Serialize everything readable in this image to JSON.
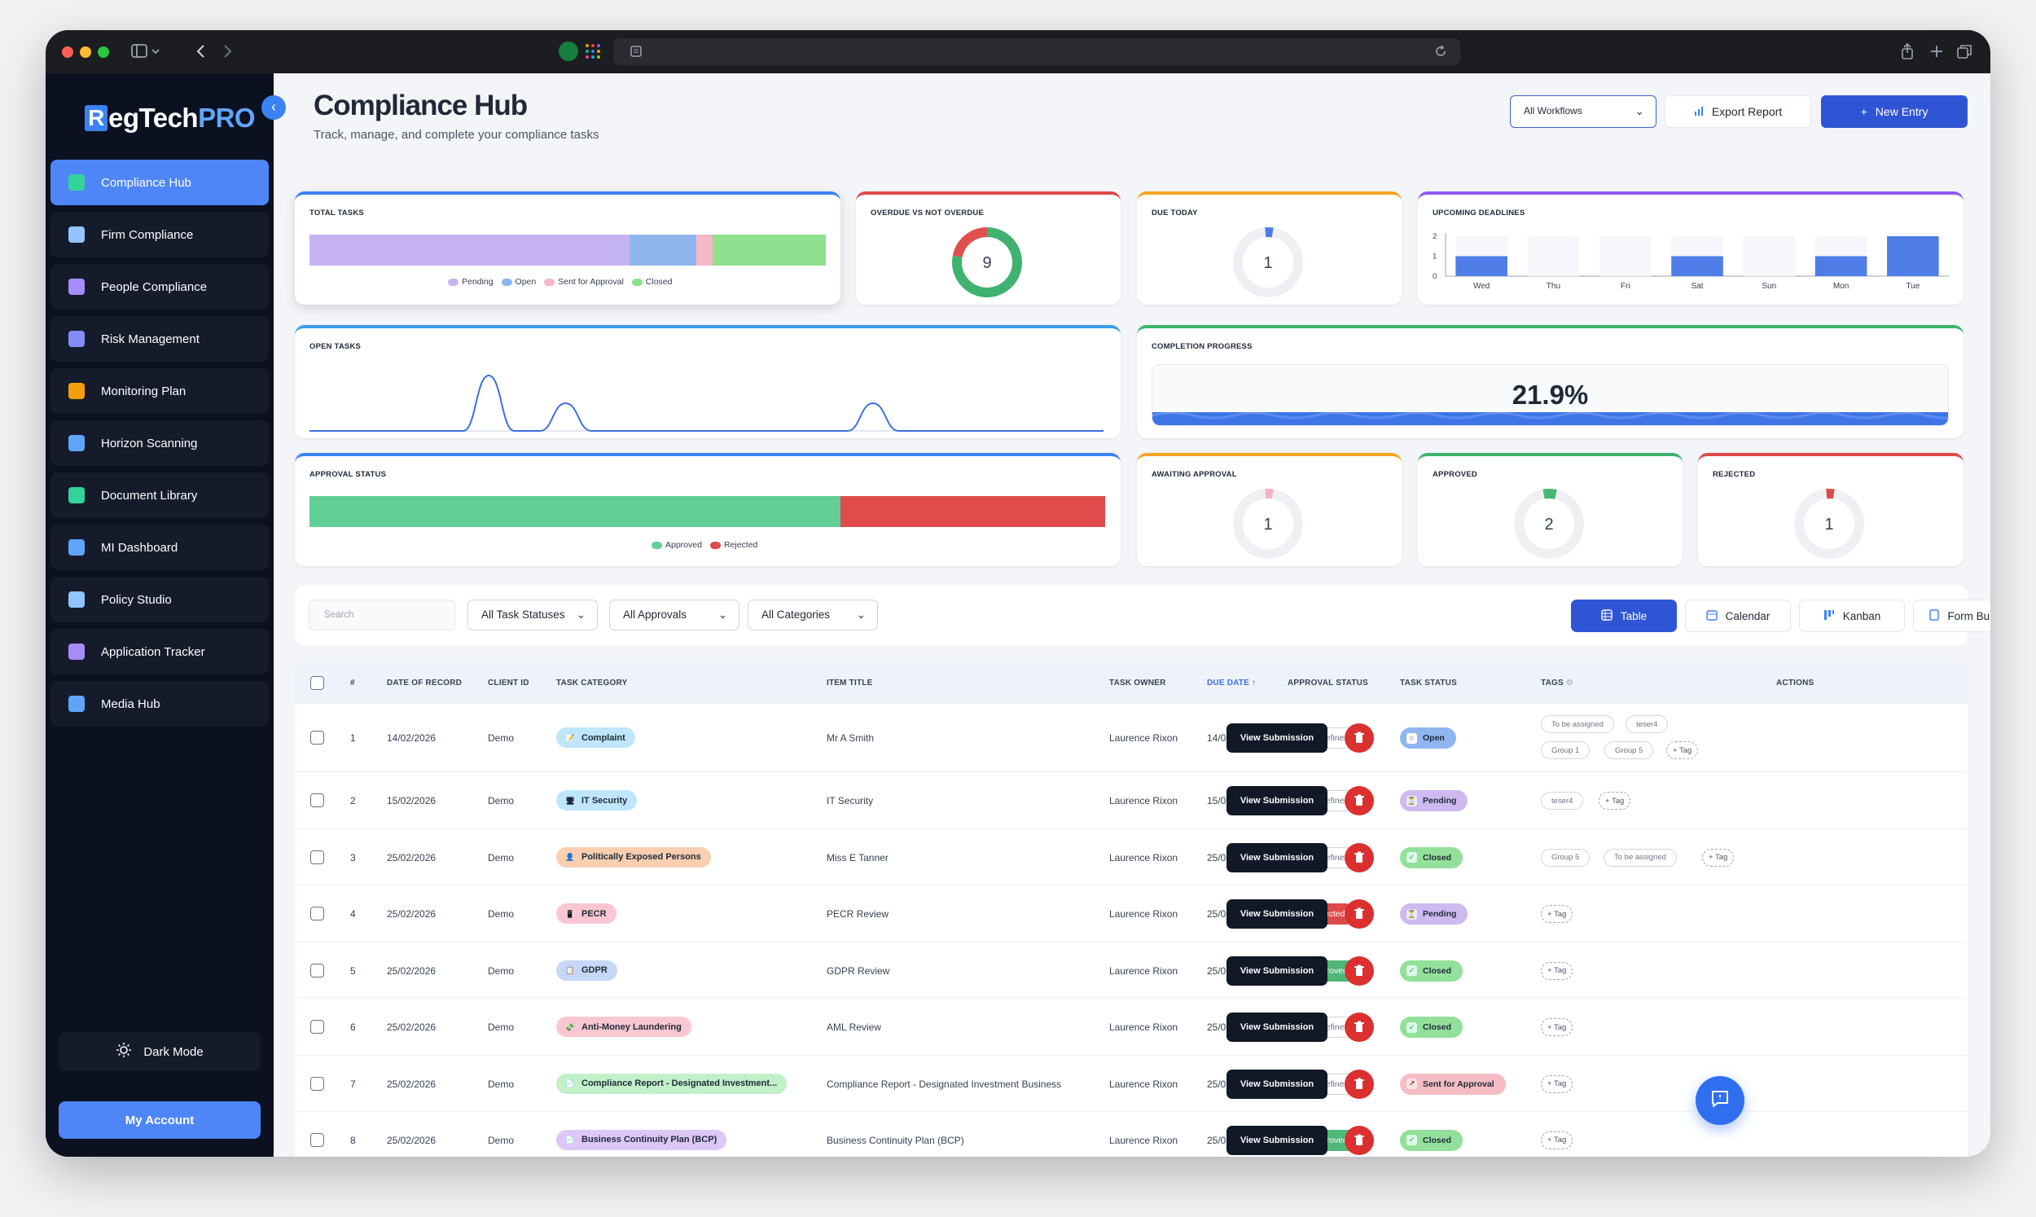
{
  "sidebar": {
    "logo": {
      "r": "R",
      "main": "egTech",
      "pro": "PRO"
    },
    "items": [
      {
        "label": "Compliance Hub",
        "icon": "compliance-hub-icon",
        "color": "#34d399"
      },
      {
        "label": "Firm Compliance",
        "icon": "building-icon",
        "color": "#93c5fd"
      },
      {
        "label": "People Compliance",
        "icon": "people-icon",
        "color": "#a78bfa"
      },
      {
        "label": "Risk Management",
        "icon": "shield-icon",
        "color": "#818cf8"
      },
      {
        "label": "Monitoring Plan",
        "icon": "clipboard-icon",
        "color": "#f59e0b"
      },
      {
        "label": "Horizon Scanning",
        "icon": "monitor-icon",
        "color": "#60a5fa"
      },
      {
        "label": "Document Library",
        "icon": "folder-icon",
        "color": "#34d399"
      },
      {
        "label": "MI Dashboard",
        "icon": "dashboard-icon",
        "color": "#60a5fa"
      },
      {
        "label": "Policy Studio",
        "icon": "policy-icon",
        "color": "#93c5fd"
      },
      {
        "label": "Application Tracker",
        "icon": "tracker-icon",
        "color": "#a78bfa"
      },
      {
        "label": "Media Hub",
        "icon": "media-icon",
        "color": "#60a5fa"
      }
    ],
    "dark_mode": "Dark Mode",
    "account": "My Account"
  },
  "header": {
    "title": "Compliance Hub",
    "subtitle": "Track, manage, and complete your compliance tasks",
    "workflow_select": "All Workflows",
    "export": "Export Report",
    "new_entry": "New Entry"
  },
  "cards": {
    "total_tasks": {
      "title": "TOTAL TASKS",
      "legend": [
        "Pending",
        "Open",
        "Sent for Approval",
        "Closed"
      ],
      "colors": [
        "#c6b4f2",
        "#8fb6ec",
        "#f5b8c9",
        "#8ee08e"
      ],
      "segments": [
        0.62,
        0.13,
        0.03,
        0.22
      ]
    },
    "overdue": {
      "title": "OVERDUE VS NOT OVERDUE",
      "value": "9",
      "fractions": [
        0.78,
        0.22
      ],
      "colors": [
        "#3fb26f",
        "#e05050"
      ]
    },
    "due_today": {
      "title": "DUE TODAY",
      "value": "1"
    },
    "upcoming": {
      "title": "UPCOMING DEADLINES",
      "ylabels": [
        "2",
        "1",
        "0"
      ]
    },
    "open_tasks": {
      "title": "OPEN TASKS"
    },
    "completion": {
      "title": "COMPLETION PROGRESS",
      "value": "21.9%"
    },
    "approval_status": {
      "title": "APPROVAL STATUS",
      "legend": [
        "Approved",
        "Rejected"
      ],
      "colors": [
        "#62cf97",
        "#e04b4b"
      ],
      "segments": [
        0.667,
        0.333
      ]
    },
    "awaiting": {
      "title": "AWAITING APPROVAL",
      "value": "1"
    },
    "approved": {
      "title": "APPROVED",
      "value": "2"
    },
    "rejected": {
      "title": "REJECTED",
      "value": "1"
    }
  },
  "chart_data": [
    {
      "type": "bar",
      "title": "UPCOMING DEADLINES",
      "categories": [
        "Wed",
        "Thu",
        "Fri",
        "Sat",
        "Sun",
        "Mon",
        "Tue"
      ],
      "values": [
        1,
        0,
        0,
        1,
        0,
        1,
        2
      ],
      "ylim": [
        0,
        2
      ]
    },
    {
      "type": "line",
      "title": "OPEN TASKS",
      "values": [
        0,
        0,
        0,
        0,
        0,
        0,
        0,
        1,
        0,
        0,
        0.5,
        0,
        0,
        0,
        0,
        0,
        0,
        0,
        0,
        0,
        0,
        0,
        0.5,
        0,
        0,
        0,
        0,
        0,
        0,
        0,
        0,
        0
      ]
    }
  ],
  "toolbar": {
    "search_placeholder": "Search",
    "filters": [
      "All Task Statuses",
      "All Approvals",
      "All Categories"
    ],
    "views": [
      "Table",
      "Calendar",
      "Kanban",
      "Form Builder"
    ]
  },
  "table": {
    "columns": [
      "#",
      "DATE OF RECORD",
      "CLIENT ID",
      "TASK CATEGORY",
      "ITEM TITLE",
      "TASK OWNER",
      "DUE DATE ↑",
      "APPROVAL STATUS",
      "TASK STATUS",
      "TAGS",
      "ACTIONS"
    ],
    "view_label": "View Submission",
    "rows": [
      {
        "num": "1",
        "date": "14/02/2026",
        "client": "Demo",
        "category": "Complaint",
        "cat_color": "#bfe6fb",
        "cat_icon": "📝",
        "title": "Mr A Smith",
        "owner": "Laurence Rixon",
        "due": "14/02/2026",
        "approval": "Undefined",
        "appr_cls": "und",
        "status": "Open",
        "status_cls": "open",
        "tags": [
          "To be assigned",
          "teser4",
          "Group 1",
          "Group 5",
          "+ Tag"
        ]
      },
      {
        "num": "2",
        "date": "15/02/2026",
        "client": "Demo",
        "category": "IT Security",
        "cat_color": "#bfe6fb",
        "cat_icon": "🖥",
        "title": "IT Security",
        "owner": "Laurence Rixon",
        "due": "15/02/2026",
        "approval": "Undefined",
        "appr_cls": "und",
        "status": "Pending",
        "status_cls": "pending",
        "tags": [
          "teser4",
          "+ Tag"
        ]
      },
      {
        "num": "3",
        "date": "25/02/2026",
        "client": "Demo",
        "category": "Politically Exposed Persons",
        "cat_color": "#f9cfb0",
        "cat_icon": "👤",
        "title": "Miss E Tanner",
        "owner": "Laurence Rixon",
        "due": "25/02/2026",
        "approval": "Undefined",
        "appr_cls": "und",
        "status": "Closed",
        "status_cls": "closed",
        "tags": [
          "Group 5",
          "To be assigned",
          "+ Tag"
        ]
      },
      {
        "num": "4",
        "date": "25/02/2026",
        "client": "Demo",
        "category": "PECR",
        "cat_color": "#f9c7d2",
        "cat_icon": "📱",
        "title": "PECR Review",
        "owner": "Laurence Rixon",
        "due": "25/02/2026",
        "approval": "Rejected",
        "appr_cls": "rej",
        "status": "Pending",
        "status_cls": "pending",
        "tags": [
          "+ Tag"
        ]
      },
      {
        "num": "5",
        "date": "25/02/2026",
        "client": "Demo",
        "category": "GDPR",
        "cat_color": "#c7d7f8",
        "cat_icon": "📋",
        "title": "GDPR Review",
        "owner": "Laurence Rixon",
        "due": "25/02/2026",
        "approval": "Approved",
        "appr_cls": "app",
        "status": "Closed",
        "status_cls": "closed",
        "tags": [
          "+ Tag"
        ]
      },
      {
        "num": "6",
        "date": "25/02/2026",
        "client": "Demo",
        "category": "Anti-Money Laundering",
        "cat_color": "#f9c7d2",
        "cat_icon": "💸",
        "title": "AML Review",
        "owner": "Laurence Rixon",
        "due": "25/02/2026",
        "approval": "Undefined",
        "appr_cls": "und",
        "status": "Closed",
        "status_cls": "closed",
        "tags": [
          "+ Tag"
        ]
      },
      {
        "num": "7",
        "date": "25/02/2026",
        "client": "Demo",
        "category": "Compliance Report - Designated Investment...",
        "cat_color": "#c2f0c9",
        "cat_icon": "📄",
        "title": "Compliance Report - Designated Investment Business",
        "owner": "Laurence Rixon",
        "due": "25/02/2026",
        "approval": "Undefined",
        "appr_cls": "und",
        "status": "Sent for Approval",
        "status_cls": "sent",
        "tags": [
          "+ Tag"
        ]
      },
      {
        "num": "8",
        "date": "25/02/2026",
        "client": "Demo",
        "category": "Business Continuity Plan (BCP)",
        "cat_color": "#dcc7f7",
        "cat_icon": "📄",
        "title": "Business Continuity Plan (BCP)",
        "owner": "Laurence Rixon",
        "due": "25/02/2026",
        "approval": "Approved",
        "appr_cls": "app",
        "status": "Closed",
        "status_cls": "closed",
        "tags": [
          "+ Tag"
        ]
      }
    ]
  }
}
